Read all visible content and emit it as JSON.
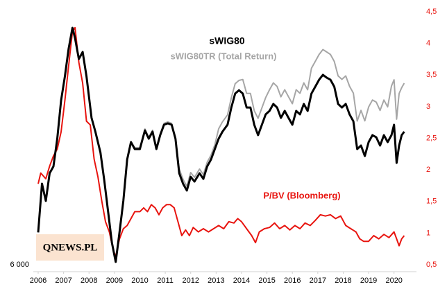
{
  "chart_data": {
    "type": "line",
    "logo": "QNEWS.PL",
    "xlim": [
      2006,
      2020.8
    ],
    "xticks": [
      2006,
      2007,
      2008,
      2009,
      2010,
      2011,
      2012,
      2013,
      2014,
      2015,
      2016,
      2017,
      2018,
      2019,
      2020
    ],
    "ylim": [
      6000,
      24000
    ],
    "yticks": [
      {
        "value": 6000,
        "label": "6 000"
      }
    ],
    "y2lim": [
      0.5,
      4.5
    ],
    "y2ticks": [
      {
        "value": 0.5,
        "label": "0,5"
      },
      1,
      {
        "value": 1.5,
        "label": "1,5"
      },
      2,
      {
        "value": 2.5,
        "label": "2,5"
      },
      3,
      {
        "value": 3.5,
        "label": "3,5"
      },
      4,
      {
        "value": 4.5,
        "label": "4,5"
      }
    ],
    "series": [
      {
        "name": "sWIG80",
        "color": "#000000",
        "x": [
          2006.0,
          2006.15,
          2006.3,
          2006.45,
          2006.6,
          2006.75,
          2006.9,
          2007.05,
          2007.2,
          2007.35,
          2007.45,
          2007.6,
          2007.75,
          2007.9,
          2008.1,
          2008.25,
          2008.45,
          2008.6,
          2008.75,
          2008.9,
          2009.05,
          2009.2,
          2009.35,
          2009.5,
          2009.65,
          2009.8,
          2010.0,
          2010.2,
          2010.35,
          2010.5,
          2010.65,
          2010.8,
          2010.95,
          2011.1,
          2011.25,
          2011.4,
          2011.55,
          2011.7,
          2011.85,
          2012.0,
          2012.15,
          2012.35,
          2012.5,
          2012.65,
          2012.8,
          2012.95,
          2013.1,
          2013.25,
          2013.45,
          2013.6,
          2013.75,
          2013.9,
          2014.05,
          2014.2,
          2014.35,
          2014.5,
          2014.65,
          2014.8,
          2014.95,
          2015.1,
          2015.25,
          2015.4,
          2015.55,
          2015.7,
          2015.85,
          2016.0,
          2016.15,
          2016.3,
          2016.45,
          2016.6,
          2016.75,
          2016.9,
          2017.05,
          2017.2,
          2017.35,
          2017.5,
          2017.65,
          2017.8,
          2017.95,
          2018.1,
          2018.25,
          2018.4,
          2018.55,
          2018.7,
          2018.85,
          2019.0,
          2019.15,
          2019.3,
          2019.45,
          2019.6,
          2019.75,
          2019.9,
          2020.0,
          2020.1,
          2020.2,
          2020.3,
          2020.4
        ],
        "values": [
          8300,
          11770,
          10540,
          12510,
          13000,
          14970,
          17690,
          19410,
          21380,
          22860,
          22120,
          20640,
          21140,
          19410,
          16450,
          15470,
          13990,
          12010,
          9800,
          7580,
          6200,
          8320,
          10540,
          13490,
          14730,
          14230,
          14230,
          15560,
          14970,
          15470,
          14230,
          15220,
          15960,
          16060,
          15960,
          14970,
          12510,
          11770,
          11280,
          12260,
          11920,
          12510,
          12110,
          13000,
          13490,
          14230,
          14970,
          15470,
          15960,
          17190,
          18180,
          18420,
          18180,
          17190,
          17190,
          15960,
          15220,
          15960,
          16700,
          16950,
          17440,
          17190,
          16450,
          16950,
          16450,
          15960,
          16950,
          16700,
          17440,
          16950,
          18180,
          18670,
          19160,
          19510,
          19310,
          19160,
          18670,
          17440,
          17190,
          17440,
          16700,
          16210,
          14230,
          14480,
          13740,
          14730,
          15220,
          15070,
          14480,
          15220,
          14730,
          15220,
          15960,
          13250,
          14480,
          15220,
          15470
        ]
      },
      {
        "name": "sWIG80TR (Total Return)",
        "color": "#a6a6a6",
        "x": [
          2009.5,
          2009.65,
          2009.8,
          2010.0,
          2010.2,
          2010.35,
          2010.5,
          2010.65,
          2010.8,
          2010.95,
          2011.1,
          2011.25,
          2011.4,
          2011.55,
          2011.7,
          2011.85,
          2012.0,
          2012.15,
          2012.35,
          2012.5,
          2012.65,
          2012.8,
          2012.95,
          2013.1,
          2013.25,
          2013.45,
          2013.6,
          2013.75,
          2013.9,
          2014.05,
          2014.2,
          2014.35,
          2014.5,
          2014.65,
          2014.8,
          2014.95,
          2015.1,
          2015.25,
          2015.4,
          2015.55,
          2015.7,
          2015.85,
          2016.0,
          2016.15,
          2016.3,
          2016.45,
          2016.6,
          2016.75,
          2016.9,
          2017.05,
          2017.2,
          2017.35,
          2017.5,
          2017.65,
          2017.8,
          2017.95,
          2018.1,
          2018.25,
          2018.4,
          2018.55,
          2018.7,
          2018.85,
          2019.0,
          2019.15,
          2019.3,
          2019.45,
          2019.6,
          2019.75,
          2019.9,
          2020.0,
          2020.1,
          2020.2,
          2020.3,
          2020.4
        ],
        "values": [
          13490,
          14730,
          14330,
          14330,
          15660,
          15070,
          15570,
          14330,
          15320,
          16060,
          16160,
          16060,
          15070,
          12810,
          12070,
          11580,
          12560,
          12220,
          12810,
          12410,
          13300,
          13790,
          14530,
          15670,
          16170,
          16660,
          17890,
          18880,
          19120,
          19180,
          18190,
          18190,
          16960,
          16420,
          17160,
          17900,
          18450,
          18940,
          18690,
          17950,
          18450,
          17950,
          17460,
          18450,
          18200,
          18940,
          18450,
          19980,
          20470,
          20960,
          21310,
          21140,
          20960,
          20470,
          19440,
          19190,
          19440,
          18700,
          18210,
          16230,
          16980,
          16240,
          17230,
          17720,
          17570,
          16980,
          17720,
          17230,
          18720,
          19160,
          16360,
          18180,
          18600,
          18920
        ]
      },
      {
        "name": "P/BV (Bloomberg)",
        "color": "#e8140f",
        "axis": "y2",
        "x": [
          2006.0,
          2006.1,
          2006.3,
          2006.45,
          2006.6,
          2006.75,
          2006.9,
          2007.05,
          2007.2,
          2007.35,
          2007.45,
          2007.6,
          2007.75,
          2007.9,
          2008.05,
          2008.2,
          2008.35,
          2008.5,
          2008.65,
          2008.8,
          2008.95,
          2009.05,
          2009.2,
          2009.35,
          2009.5,
          2009.65,
          2009.8,
          2010.0,
          2010.15,
          2010.3,
          2010.45,
          2010.6,
          2010.75,
          2010.9,
          2011.05,
          2011.2,
          2011.35,
          2011.5,
          2011.65,
          2011.8,
          2011.95,
          2012.1,
          2012.3,
          2012.5,
          2012.7,
          2012.9,
          2013.1,
          2013.3,
          2013.5,
          2013.7,
          2013.85,
          2014.0,
          2014.2,
          2014.4,
          2014.55,
          2014.7,
          2014.9,
          2015.1,
          2015.3,
          2015.5,
          2015.7,
          2015.9,
          2016.1,
          2016.3,
          2016.5,
          2016.7,
          2016.9,
          2017.1,
          2017.3,
          2017.5,
          2017.7,
          2017.9,
          2018.1,
          2018.3,
          2018.5,
          2018.65,
          2018.8,
          2019.0,
          2019.2,
          2019.4,
          2019.6,
          2019.8,
          2020.0,
          2020.1,
          2020.2,
          2020.3,
          2020.4
        ],
        "values": [
          1.78,
          1.95,
          1.86,
          2.06,
          2.22,
          2.33,
          2.6,
          3.1,
          3.65,
          4.19,
          4.25,
          3.7,
          3.37,
          2.77,
          2.71,
          2.17,
          1.89,
          1.51,
          1.18,
          1.02,
          0.74,
          0.63,
          0.91,
          1.07,
          1.12,
          1.23,
          1.34,
          1.34,
          1.4,
          1.34,
          1.45,
          1.4,
          1.29,
          1.4,
          1.45,
          1.45,
          1.4,
          1.18,
          0.96,
          1.05,
          0.96,
          1.09,
          1.02,
          1.07,
          1.02,
          1.07,
          1.12,
          1.07,
          1.18,
          1.16,
          1.23,
          1.18,
          1.07,
          0.96,
          0.85,
          1.02,
          1.07,
          1.09,
          1.16,
          1.07,
          1.12,
          1.05,
          1.12,
          1.07,
          1.16,
          1.12,
          1.2,
          1.29,
          1.27,
          1.29,
          1.23,
          1.27,
          1.12,
          1.07,
          1.02,
          0.91,
          0.87,
          0.87,
          0.96,
          0.91,
          0.98,
          0.93,
          1.02,
          0.91,
          0.8,
          0.91,
          0.96
        ]
      }
    ]
  }
}
